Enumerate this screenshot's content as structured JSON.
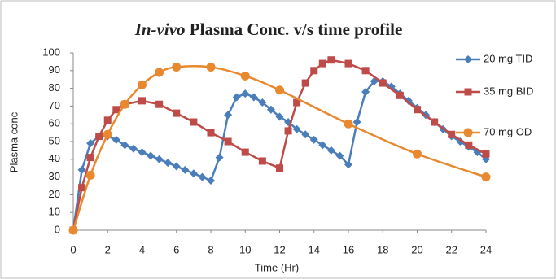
{
  "chart_data": {
    "type": "line",
    "title_parts": [
      "In-vivo",
      "Plasma Conc. v/s time profile"
    ],
    "x_label": "Time (Hr)",
    "y_label": "Plasma conc",
    "xlim": [
      0,
      24
    ],
    "xticks": [
      0,
      2,
      4,
      6,
      8,
      10,
      12,
      14,
      16,
      18,
      20,
      22,
      24
    ],
    "ylim": [
      0,
      100
    ],
    "yticks": [
      0,
      10,
      20,
      30,
      40,
      50,
      60,
      70,
      80,
      90,
      100
    ],
    "series": [
      {
        "name": "20 mg TID",
        "color": "#4a7ebb",
        "marker": "diamond",
        "smooth": false,
        "x": [
          0,
          0.5,
          1,
          1.5,
          2,
          2.5,
          3,
          3.5,
          4,
          4.5,
          5,
          5.5,
          6,
          6.5,
          7,
          7.5,
          8,
          8.5,
          9,
          9.5,
          10,
          10.5,
          11,
          11.5,
          12,
          12.5,
          13,
          13.5,
          14,
          14.5,
          15,
          15.5,
          16,
          16.5,
          17,
          17.5,
          18,
          18.5,
          19,
          19.5,
          20,
          20.5,
          21,
          21.5,
          22,
          22.5,
          23,
          23.5,
          24
        ],
        "values": [
          0,
          34,
          49,
          53,
          53,
          51,
          48,
          46,
          44,
          42,
          40,
          38,
          36,
          34,
          32,
          30,
          28,
          41,
          65,
          75,
          77,
          75,
          72,
          68,
          64,
          61,
          57,
          54,
          51,
          48,
          45,
          42,
          37,
          61,
          78,
          84,
          84,
          81,
          77,
          73,
          69,
          65,
          61,
          57,
          53,
          50,
          47,
          44,
          40
        ]
      },
      {
        "name": "35 mg BID",
        "color": "#be4b48",
        "marker": "square",
        "smooth": false,
        "x": [
          0,
          0.5,
          1,
          1.5,
          2,
          2.5,
          3,
          4,
          5,
          6,
          7,
          8,
          9,
          10,
          11,
          12,
          12.5,
          13,
          13.5,
          14,
          14.5,
          15,
          16,
          17,
          18,
          19,
          20,
          21,
          22,
          23,
          24
        ],
        "values": [
          0,
          24,
          41,
          53,
          62,
          68,
          71,
          73,
          71,
          66,
          61,
          55,
          50,
          44,
          39,
          35,
          56,
          72,
          83,
          90,
          94,
          96,
          94,
          90,
          83,
          76,
          68,
          61,
          54,
          48,
          43
        ]
      },
      {
        "name": "70 mg OD",
        "color": "#e8892f",
        "marker": "circle",
        "smooth": true,
        "x": [
          0,
          1,
          2,
          3,
          4,
          5,
          6,
          8,
          10,
          12,
          16,
          20,
          24
        ],
        "values": [
          0,
          31,
          54,
          71,
          82,
          89,
          92,
          92,
          87,
          79,
          60,
          43,
          30
        ]
      }
    ]
  }
}
